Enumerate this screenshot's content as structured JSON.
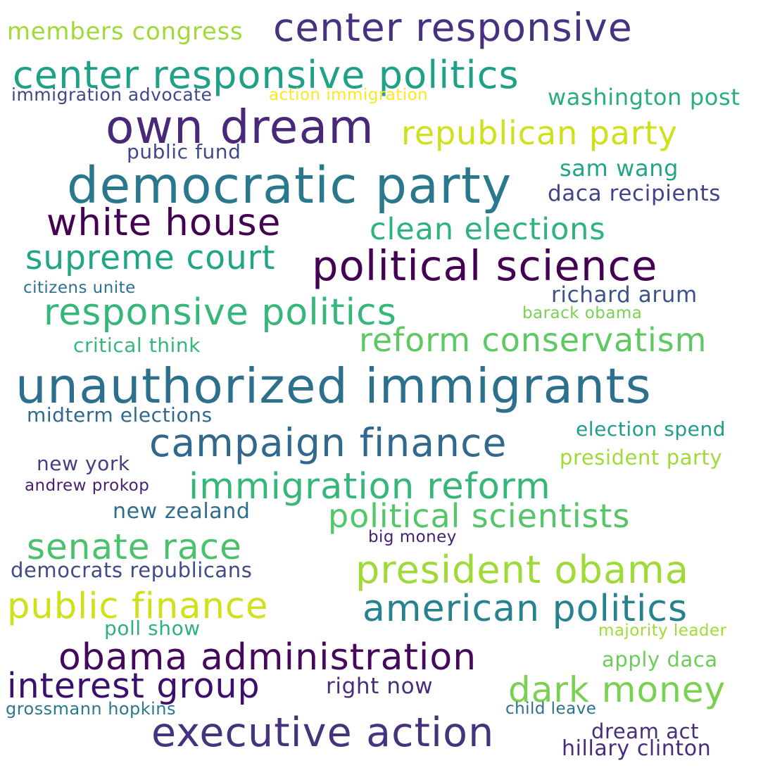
{
  "words": [
    {
      "text": "members congress",
      "color": "#a0da39"
    },
    {
      "text": "center responsive",
      "color": "#46327e"
    },
    {
      "text": "center responsive politics",
      "color": "#1fa187"
    },
    {
      "text": "immigration advocate",
      "color": "#3e4989"
    },
    {
      "text": "action immigration",
      "color": "#fde725"
    },
    {
      "text": "washington post",
      "color": "#27ad81"
    },
    {
      "text": "own dream",
      "color": "#482878"
    },
    {
      "text": "republican party",
      "color": "#d0e11c"
    },
    {
      "text": "public fund",
      "color": "#3e4989"
    },
    {
      "text": "sam wang",
      "color": "#21a685"
    },
    {
      "text": "democratic party",
      "color": "#2a788e"
    },
    {
      "text": "daca recipients",
      "color": "#414487"
    },
    {
      "text": "white house",
      "color": "#440154"
    },
    {
      "text": "clean elections",
      "color": "#2eb37c"
    },
    {
      "text": "supreme court",
      "color": "#21a685"
    },
    {
      "text": "political science",
      "color": "#440154"
    },
    {
      "text": "citizens unite",
      "color": "#2c728e"
    },
    {
      "text": "richard arum",
      "color": "#3b528b"
    },
    {
      "text": "responsive politics",
      "color": "#35b779"
    },
    {
      "text": "barack obama",
      "color": "#7ad151"
    },
    {
      "text": "critical think",
      "color": "#35b779"
    },
    {
      "text": "reform conservatism",
      "color": "#5ec962"
    },
    {
      "text": "unauthorized immigrants",
      "color": "#2d708e"
    },
    {
      "text": "midterm elections",
      "color": "#31688e"
    },
    {
      "text": "campaign finance",
      "color": "#31688e"
    },
    {
      "text": "election spend",
      "color": "#1f9e89"
    },
    {
      "text": "new york",
      "color": "#433e85"
    },
    {
      "text": "president party",
      "color": "#a0da39"
    },
    {
      "text": "andrew prokop",
      "color": "#481f70"
    },
    {
      "text": "immigration reform",
      "color": "#35b779"
    },
    {
      "text": "new zealand",
      "color": "#2f6c8e"
    },
    {
      "text": "political scientists",
      "color": "#54c568"
    },
    {
      "text": "senate race",
      "color": "#4ac16d"
    },
    {
      "text": "big money",
      "color": "#482173"
    },
    {
      "text": "democrats republicans",
      "color": "#3e4c8a"
    },
    {
      "text": "president obama",
      "color": "#a0da39"
    },
    {
      "text": "public finance",
      "color": "#d0e11c"
    },
    {
      "text": "american politics",
      "color": "#26828e"
    },
    {
      "text": "poll show",
      "color": "#2db27d"
    },
    {
      "text": "majority leader",
      "color": "#a2da37"
    },
    {
      "text": "obama administration",
      "color": "#46085c"
    },
    {
      "text": "apply daca",
      "color": "#6ccd5a"
    },
    {
      "text": "interest group",
      "color": "#3b0f70"
    },
    {
      "text": "right now",
      "color": "#472d7b"
    },
    {
      "text": "dark money",
      "color": "#7ad151"
    },
    {
      "text": "grossmann hopkins",
      "color": "#2a788e"
    },
    {
      "text": "child leave",
      "color": "#2c728e"
    },
    {
      "text": "executive action",
      "color": "#46337e"
    },
    {
      "text": "dream act",
      "color": "#472d7b"
    },
    {
      "text": "hillary clinton",
      "color": "#472d7b"
    }
  ]
}
